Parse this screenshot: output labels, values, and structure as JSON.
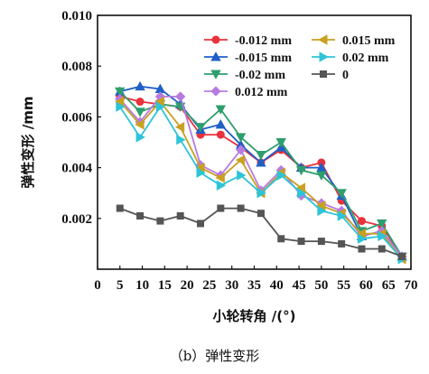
{
  "caption": "（b）弹性变形",
  "chart_data": {
    "type": "line",
    "xlabel": "小轮转角 /(°)",
    "ylabel": "弹性变形 /mm",
    "xlim": [
      0,
      70
    ],
    "ylim": [
      0,
      0.01
    ],
    "xticks": [
      "0",
      "5",
      "10",
      "15",
      "20",
      "25",
      "30",
      "35",
      "40",
      "45",
      "50",
      "55",
      "60",
      "65",
      "70"
    ],
    "yticks": [
      "0.002",
      "0.004",
      "0.006",
      "0.008",
      "0.010"
    ],
    "legend_position": "top-right",
    "series": [
      {
        "name": "-0.012 mm",
        "color": "#e8323c",
        "marker": "circle",
        "x": [
          5,
          9.5,
          14,
          18.5,
          23,
          27.5,
          32,
          36.5,
          41,
          45.5,
          50,
          54.5,
          59,
          63.5,
          68
        ],
        "y": [
          0.0068,
          0.0066,
          0.0065,
          0.0064,
          0.0053,
          0.0053,
          0.0048,
          0.0042,
          0.0047,
          0.004,
          0.0042,
          0.0027,
          0.0019,
          0.0017,
          0.0005
        ]
      },
      {
        "name": "-0.015 mm",
        "color": "#1f5fc8",
        "marker": "triangle-up",
        "x": [
          5,
          9.5,
          14,
          18.5,
          23,
          27.5,
          32,
          36.5,
          41,
          45.5,
          50,
          54.5,
          59,
          63.5,
          68
        ],
        "y": [
          0.007,
          0.0072,
          0.0071,
          0.0065,
          0.0055,
          0.0057,
          0.0049,
          0.0042,
          0.0048,
          0.004,
          0.004,
          0.0029,
          0.0013,
          0.0015,
          0.0005
        ]
      },
      {
        "name": "-0.02 mm",
        "color": "#2e9e6e",
        "marker": "triangle-down",
        "x": [
          5,
          9.5,
          14,
          18.5,
          23,
          27.5,
          32,
          36.5,
          41,
          45.5,
          50,
          54.5,
          59,
          63.5,
          68
        ],
        "y": [
          0.007,
          0.0062,
          0.0065,
          0.0064,
          0.0056,
          0.0063,
          0.0052,
          0.0045,
          0.005,
          0.0039,
          0.0037,
          0.003,
          0.0015,
          0.0018,
          0.0005
        ]
      },
      {
        "name": "0.012 mm",
        "color": "#b77be0",
        "marker": "diamond",
        "x": [
          5,
          9.5,
          14,
          18.5,
          23,
          27.5,
          32,
          36.5,
          41,
          45.5,
          50,
          54.5,
          59,
          63.5,
          68
        ],
        "y": [
          0.0067,
          0.0058,
          0.0068,
          0.0068,
          0.0041,
          0.0037,
          0.0047,
          0.0031,
          0.0039,
          0.0029,
          0.0026,
          0.0023,
          0.0013,
          0.0015,
          0.0005
        ]
      },
      {
        "name": "0.015 mm",
        "color": "#c9a020",
        "marker": "triangle-left",
        "x": [
          5,
          9.5,
          14,
          18.5,
          23,
          27.5,
          32,
          36.5,
          41,
          45.5,
          50,
          54.5,
          59,
          63.5,
          68
        ],
        "y": [
          0.0066,
          0.0057,
          0.0066,
          0.0056,
          0.004,
          0.0036,
          0.0043,
          0.003,
          0.0038,
          0.0032,
          0.0025,
          0.0022,
          0.0014,
          0.0014,
          0.0004
        ]
      },
      {
        "name": "0.02 mm",
        "color": "#2ec4d8",
        "marker": "triangle-right",
        "x": [
          5,
          9.5,
          14,
          18.5,
          23,
          27.5,
          32,
          36.5,
          41,
          45.5,
          50,
          54.5,
          59,
          63.5,
          68
        ],
        "y": [
          0.0064,
          0.0052,
          0.0064,
          0.0051,
          0.0038,
          0.0033,
          0.0037,
          0.003,
          0.0037,
          0.003,
          0.0023,
          0.0021,
          0.0012,
          0.0013,
          0.0004
        ]
      },
      {
        "name": "0",
        "color": "#555555",
        "marker": "square",
        "x": [
          5,
          9.5,
          14,
          18.5,
          23,
          27.5,
          32,
          36.5,
          41,
          45.5,
          50,
          54.5,
          59,
          63.5,
          68
        ],
        "y": [
          0.0024,
          0.0021,
          0.0019,
          0.0021,
          0.0018,
          0.0024,
          0.0024,
          0.0022,
          0.0012,
          0.0011,
          0.0011,
          0.001,
          0.0008,
          0.0008,
          0.0005
        ]
      }
    ]
  }
}
